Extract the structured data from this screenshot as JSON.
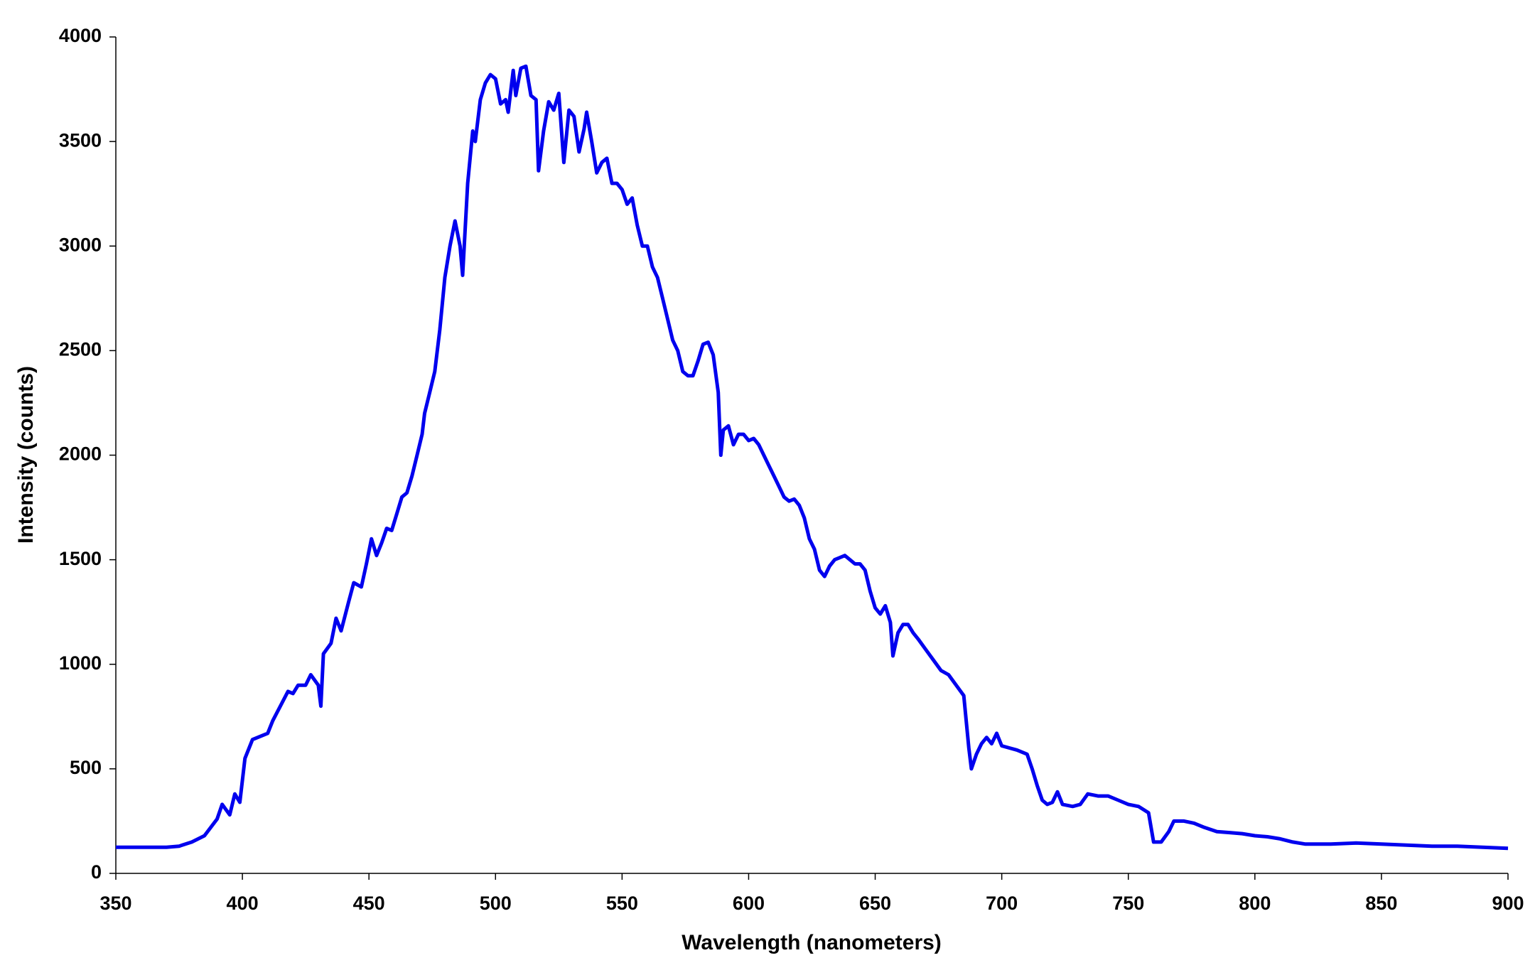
{
  "chart_data": {
    "type": "line",
    "x_label": "Wavelength (nanometers)",
    "y_label": "Intensity (counts)",
    "xlim": [
      350,
      900
    ],
    "xticks": [
      350,
      400,
      450,
      500,
      550,
      600,
      650,
      700,
      750,
      800,
      850,
      900
    ],
    "ylim": [
      0,
      4000
    ],
    "yticks": [
      0,
      500,
      1000,
      1500,
      2000,
      2500,
      3000,
      3500,
      4000
    ],
    "grid": false,
    "series": [
      {
        "color": "#0000ee",
        "x": [
          350,
          360,
          370,
          375,
          380,
          385,
          390,
          392,
          395,
          397,
          399,
          401,
          404,
          410,
          412,
          415,
          418,
          420,
          422,
          425,
          427,
          430,
          431,
          432,
          435,
          437,
          439,
          442,
          444,
          447,
          449,
          451,
          453,
          455,
          457,
          459,
          461,
          463,
          465,
          467,
          469,
          471,
          472,
          474,
          476,
          478,
          480,
          482,
          484,
          486,
          487,
          489,
          491,
          492,
          494,
          496,
          498,
          500,
          502,
          504,
          505,
          507,
          508,
          510,
          512,
          514,
          516,
          517,
          519,
          521,
          523,
          525,
          527,
          529,
          531,
          533,
          535,
          536,
          538,
          540,
          542,
          544,
          546,
          548,
          550,
          552,
          554,
          556,
          558,
          560,
          562,
          564,
          566,
          568,
          570,
          572,
          574,
          576,
          578,
          580,
          582,
          584,
          586,
          588,
          589,
          590,
          592,
          594,
          596,
          598,
          600,
          602,
          604,
          606,
          608,
          610,
          612,
          614,
          616,
          618,
          620,
          622,
          624,
          626,
          628,
          630,
          632,
          634,
          636,
          638,
          640,
          642,
          644,
          646,
          648,
          650,
          652,
          654,
          656,
          657,
          659,
          661,
          663,
          665,
          667,
          670,
          673,
          676,
          679,
          682,
          685,
          687,
          688,
          690,
          692,
          694,
          696,
          698,
          700,
          703,
          706,
          710,
          712,
          714,
          716,
          718,
          720,
          722,
          724,
          728,
          731,
          734,
          738,
          742,
          746,
          750,
          754,
          758,
          760,
          763,
          766,
          768,
          772,
          776,
          780,
          785,
          790,
          795,
          800,
          805,
          810,
          815,
          820,
          830,
          840,
          850,
          860,
          870,
          880,
          890,
          900
        ],
        "values": [
          125,
          125,
          125,
          130,
          150,
          180,
          260,
          330,
          280,
          380,
          340,
          550,
          640,
          670,
          730,
          800,
          870,
          860,
          900,
          900,
          950,
          900,
          800,
          1050,
          1100,
          1220,
          1160,
          1300,
          1390,
          1370,
          1480,
          1600,
          1520,
          1580,
          1650,
          1640,
          1720,
          1800,
          1820,
          1900,
          2000,
          2100,
          2200,
          2300,
          2400,
          2600,
          2850,
          3000,
          3120,
          3000,
          2860,
          3300,
          3550,
          3500,
          3700,
          3780,
          3820,
          3800,
          3680,
          3700,
          3640,
          3840,
          3720,
          3850,
          3860,
          3720,
          3700,
          3360,
          3550,
          3690,
          3650,
          3730,
          3400,
          3650,
          3620,
          3450,
          3560,
          3640,
          3500,
          3350,
          3400,
          3420,
          3300,
          3300,
          3270,
          3200,
          3230,
          3100,
          3000,
          3000,
          2900,
          2850,
          2750,
          2650,
          2550,
          2500,
          2400,
          2380,
          2380,
          2450,
          2530,
          2540,
          2480,
          2300,
          2000,
          2120,
          2140,
          2050,
          2100,
          2100,
          2070,
          2080,
          2050,
          2000,
          1950,
          1900,
          1850,
          1800,
          1780,
          1790,
          1760,
          1700,
          1600,
          1550,
          1450,
          1420,
          1470,
          1500,
          1510,
          1520,
          1500,
          1480,
          1480,
          1450,
          1350,
          1270,
          1240,
          1280,
          1200,
          1040,
          1150,
          1190,
          1190,
          1150,
          1120,
          1070,
          1020,
          970,
          950,
          900,
          850,
          600,
          500,
          570,
          620,
          650,
          620,
          670,
          610,
          600,
          590,
          570,
          500,
          420,
          350,
          330,
          340,
          390,
          330,
          320,
          330,
          380,
          370,
          370,
          350,
          330,
          320,
          290,
          150,
          150,
          200,
          250,
          250,
          240,
          220,
          200,
          195,
          190,
          180,
          175,
          165,
          150,
          140,
          140,
          145,
          140,
          135,
          130,
          130,
          125,
          120
        ]
      }
    ]
  }
}
